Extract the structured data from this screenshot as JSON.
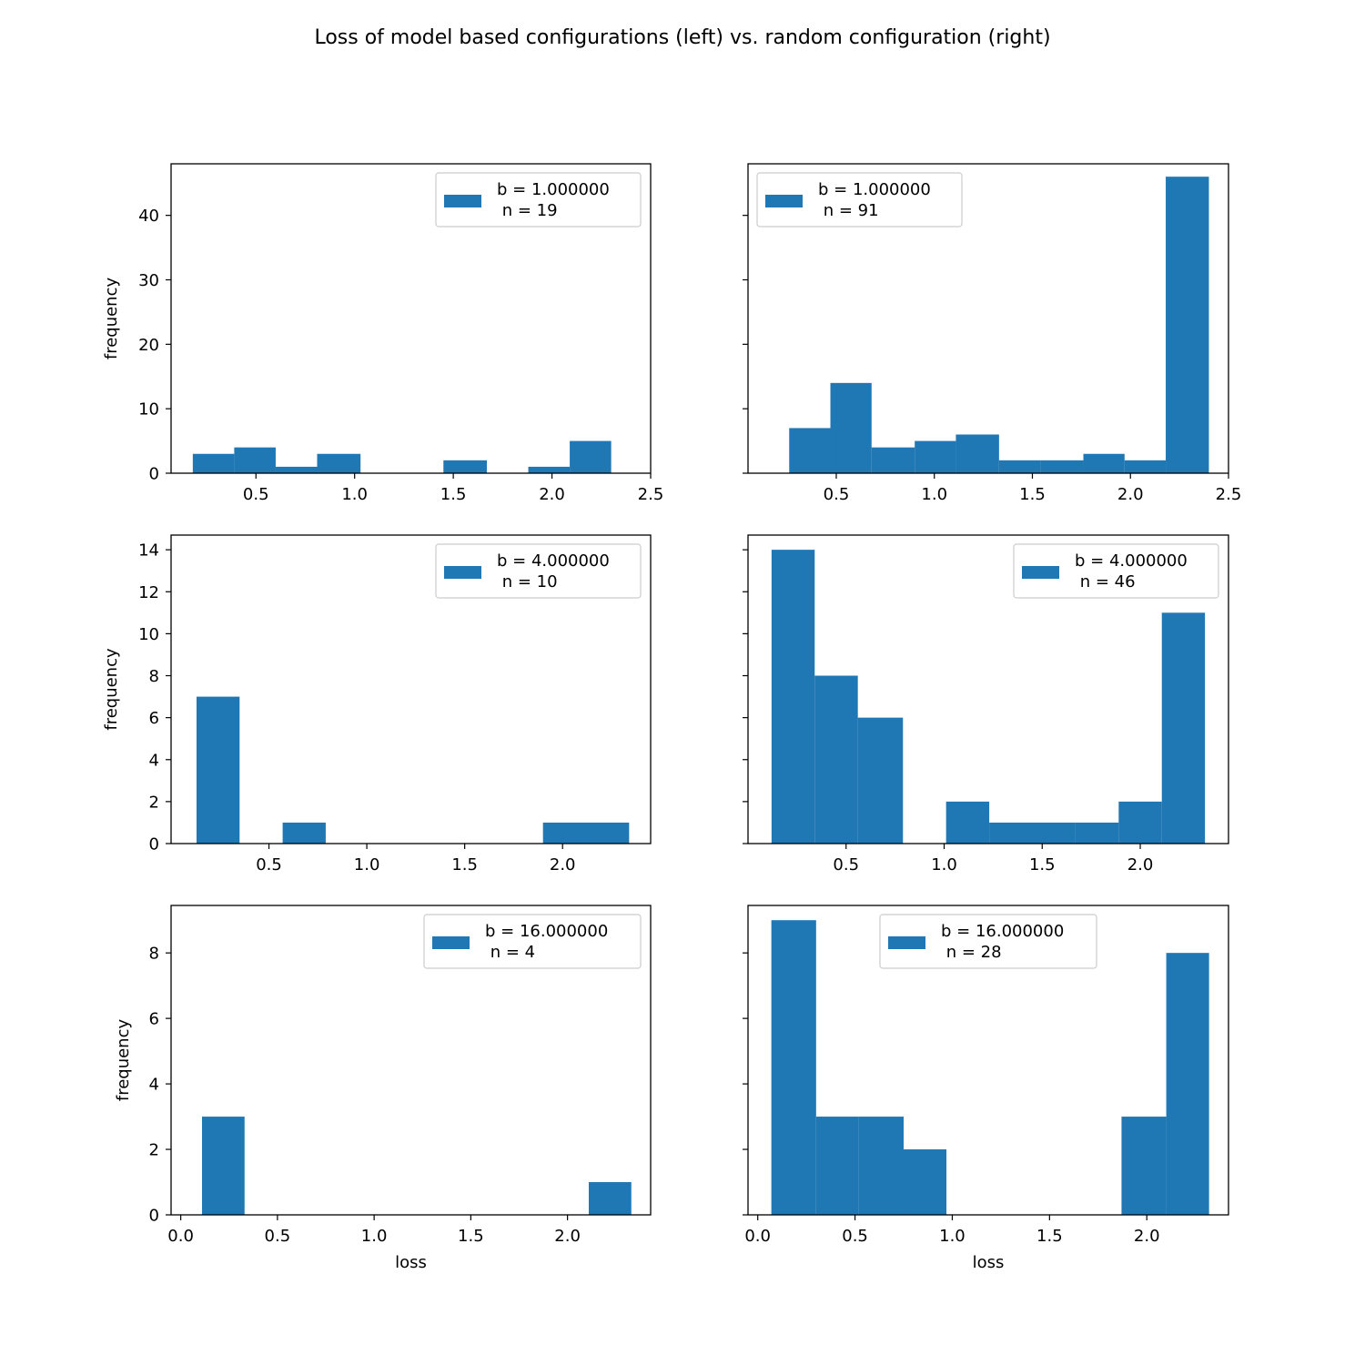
{
  "figure": {
    "title": "Loss of model based configurations (left) vs. random configuration (right)",
    "bar_color": "#1f77b4"
  },
  "chart_data": [
    {
      "type": "bar",
      "panel": "top-left",
      "xlim": [
        0.07,
        2.5
      ],
      "ylim": [
        0,
        48
      ],
      "xticks": [
        0.5,
        1.0,
        1.5,
        2.0,
        2.5
      ],
      "xticklabels": [
        "0.5",
        "1.0",
        "1.5",
        "2.0",
        "2.5"
      ],
      "yticks": [
        0,
        10,
        20,
        30,
        40
      ],
      "yticklabels": [
        "0",
        "10",
        "20",
        "30",
        "40"
      ],
      "show_yticklabels": true,
      "xlabel": "",
      "ylabel": "frequency",
      "legend": {
        "line1": "b = 1.000000",
        "line2": " n = 19",
        "placement": "upper right"
      },
      "bins": [
        {
          "x0": 0.18,
          "x1": 0.39,
          "count": 3
        },
        {
          "x0": 0.39,
          "x1": 0.6,
          "count": 4
        },
        {
          "x0": 0.6,
          "x1": 0.81,
          "count": 1
        },
        {
          "x0": 0.81,
          "x1": 1.03,
          "count": 3
        },
        {
          "x0": 1.03,
          "x1": 1.24,
          "count": 0
        },
        {
          "x0": 1.24,
          "x1": 1.45,
          "count": 0
        },
        {
          "x0": 1.45,
          "x1": 1.67,
          "count": 2
        },
        {
          "x0": 1.67,
          "x1": 1.88,
          "count": 0
        },
        {
          "x0": 1.88,
          "x1": 2.09,
          "count": 1
        },
        {
          "x0": 2.09,
          "x1": 2.3,
          "count": 5
        }
      ]
    },
    {
      "type": "bar",
      "panel": "top-right",
      "xlim": [
        0.05,
        2.5
      ],
      "ylim": [
        0,
        48
      ],
      "xticks": [
        0.5,
        1.0,
        1.5,
        2.0,
        2.5
      ],
      "xticklabels": [
        "0.5",
        "1.0",
        "1.5",
        "2.0",
        "2.5"
      ],
      "yticks": [
        0,
        10,
        20,
        30,
        40
      ],
      "yticklabels": [
        "0",
        "10",
        "20",
        "30",
        "40"
      ],
      "show_yticklabels": false,
      "xlabel": "",
      "ylabel": "",
      "legend": {
        "line1": "b = 1.000000",
        "line2": " n = 91",
        "placement": "upper left"
      },
      "bins": [
        {
          "x0": 0.26,
          "x1": 0.47,
          "count": 7
        },
        {
          "x0": 0.47,
          "x1": 0.68,
          "count": 14
        },
        {
          "x0": 0.68,
          "x1": 0.9,
          "count": 4
        },
        {
          "x0": 0.9,
          "x1": 1.11,
          "count": 5
        },
        {
          "x0": 1.11,
          "x1": 1.33,
          "count": 6
        },
        {
          "x0": 1.33,
          "x1": 1.54,
          "count": 2
        },
        {
          "x0": 1.54,
          "x1": 1.76,
          "count": 2
        },
        {
          "x0": 1.76,
          "x1": 1.97,
          "count": 3
        },
        {
          "x0": 1.97,
          "x1": 2.18,
          "count": 2
        },
        {
          "x0": 2.18,
          "x1": 2.4,
          "count": 46
        }
      ]
    },
    {
      "type": "bar",
      "panel": "middle-left",
      "xlim": [
        0.0,
        2.45
      ],
      "ylim": [
        0,
        14.7
      ],
      "xticks": [
        0.5,
        1.0,
        1.5,
        2.0
      ],
      "xticklabels": [
        "0.5",
        "1.0",
        "1.5",
        "2.0"
      ],
      "yticks": [
        0,
        2,
        4,
        6,
        8,
        10,
        12,
        14
      ],
      "yticklabels": [
        "0",
        "2",
        "4",
        "6",
        "8",
        "10",
        "12",
        "14"
      ],
      "show_yticklabels": true,
      "xlabel": "",
      "ylabel": "frequency",
      "legend": {
        "line1": "b = 4.000000",
        "line2": " n = 10",
        "placement": "upper right"
      },
      "bins": [
        {
          "x0": 0.13,
          "x1": 0.35,
          "count": 7
        },
        {
          "x0": 0.35,
          "x1": 0.57,
          "count": 0
        },
        {
          "x0": 0.57,
          "x1": 0.79,
          "count": 1
        },
        {
          "x0": 0.79,
          "x1": 1.01,
          "count": 0
        },
        {
          "x0": 1.01,
          "x1": 1.24,
          "count": 0
        },
        {
          "x0": 1.24,
          "x1": 1.46,
          "count": 0
        },
        {
          "x0": 1.46,
          "x1": 1.68,
          "count": 0
        },
        {
          "x0": 1.68,
          "x1": 1.9,
          "count": 0
        },
        {
          "x0": 1.9,
          "x1": 2.12,
          "count": 1
        },
        {
          "x0": 2.12,
          "x1": 2.34,
          "count": 1
        }
      ]
    },
    {
      "type": "bar",
      "panel": "middle-right",
      "xlim": [
        0.0,
        2.45
      ],
      "ylim": [
        0,
        14.7
      ],
      "xticks": [
        0.5,
        1.0,
        1.5,
        2.0
      ],
      "xticklabels": [
        "0.5",
        "1.0",
        "1.5",
        "2.0"
      ],
      "yticks": [
        0,
        2,
        4,
        6,
        8,
        10,
        12,
        14
      ],
      "yticklabels": [
        "0",
        "2",
        "4",
        "6",
        "8",
        "10",
        "12",
        "14"
      ],
      "show_yticklabels": false,
      "xlabel": "",
      "ylabel": "",
      "legend": {
        "line1": "b = 4.000000",
        "line2": " n = 46",
        "placement": "upper right"
      },
      "bins": [
        {
          "x0": 0.12,
          "x1": 0.34,
          "count": 14
        },
        {
          "x0": 0.34,
          "x1": 0.56,
          "count": 8
        },
        {
          "x0": 0.56,
          "x1": 0.79,
          "count": 6
        },
        {
          "x0": 0.79,
          "x1": 1.01,
          "count": 0
        },
        {
          "x0": 1.01,
          "x1": 1.23,
          "count": 2
        },
        {
          "x0": 1.23,
          "x1": 1.45,
          "count": 1
        },
        {
          "x0": 1.45,
          "x1": 1.67,
          "count": 1
        },
        {
          "x0": 1.67,
          "x1": 1.89,
          "count": 1
        },
        {
          "x0": 1.89,
          "x1": 2.11,
          "count": 2
        },
        {
          "x0": 2.11,
          "x1": 2.33,
          "count": 11
        }
      ]
    },
    {
      "type": "bar",
      "panel": "bottom-left",
      "xlim": [
        -0.05,
        2.43
      ],
      "ylim": [
        0,
        9.45
      ],
      "xticks": [
        0.0,
        0.5,
        1.0,
        1.5,
        2.0
      ],
      "xticklabels": [
        "0.0",
        "0.5",
        "1.0",
        "1.5",
        "2.0"
      ],
      "yticks": [
        0,
        2,
        4,
        6,
        8
      ],
      "yticklabels": [
        "0",
        "2",
        "4",
        "6",
        "8"
      ],
      "show_yticklabels": true,
      "xlabel": "loss",
      "ylabel": "frequency",
      "legend": {
        "line1": "b = 16.000000",
        "line2": " n = 4",
        "placement": "upper right"
      },
      "bins": [
        {
          "x0": 0.11,
          "x1": 0.33,
          "count": 3
        },
        {
          "x0": 0.33,
          "x1": 0.56,
          "count": 0
        },
        {
          "x0": 0.56,
          "x1": 0.78,
          "count": 0
        },
        {
          "x0": 0.78,
          "x1": 1.0,
          "count": 0
        },
        {
          "x0": 1.0,
          "x1": 1.22,
          "count": 0
        },
        {
          "x0": 1.22,
          "x1": 1.44,
          "count": 0
        },
        {
          "x0": 1.44,
          "x1": 1.67,
          "count": 0
        },
        {
          "x0": 1.67,
          "x1": 1.89,
          "count": 0
        },
        {
          "x0": 1.89,
          "x1": 2.11,
          "count": 0
        },
        {
          "x0": 2.11,
          "x1": 2.33,
          "count": 1
        }
      ]
    },
    {
      "type": "bar",
      "panel": "bottom-right",
      "xlim": [
        -0.05,
        2.42
      ],
      "ylim": [
        0,
        9.45
      ],
      "xticks": [
        0.0,
        0.5,
        1.0,
        1.5,
        2.0
      ],
      "xticklabels": [
        "0.0",
        "0.5",
        "1.0",
        "1.5",
        "2.0"
      ],
      "yticks": [
        0,
        2,
        4,
        6,
        8
      ],
      "yticklabels": [
        "0",
        "2",
        "4",
        "6",
        "8"
      ],
      "show_yticklabels": false,
      "xlabel": "loss",
      "ylabel": "",
      "legend": {
        "line1": "b = 16.000000",
        "line2": " n = 28",
        "placement": "upper center"
      },
      "bins": [
        {
          "x0": 0.07,
          "x1": 0.3,
          "count": 9
        },
        {
          "x0": 0.3,
          "x1": 0.52,
          "count": 3
        },
        {
          "x0": 0.52,
          "x1": 0.75,
          "count": 3
        },
        {
          "x0": 0.75,
          "x1": 0.97,
          "count": 2
        },
        {
          "x0": 0.97,
          "x1": 1.2,
          "count": 0
        },
        {
          "x0": 1.2,
          "x1": 1.42,
          "count": 0
        },
        {
          "x0": 1.42,
          "x1": 1.65,
          "count": 0
        },
        {
          "x0": 1.65,
          "x1": 1.87,
          "count": 0
        },
        {
          "x0": 1.87,
          "x1": 2.1,
          "count": 3
        },
        {
          "x0": 2.1,
          "x1": 2.32,
          "count": 8
        }
      ]
    }
  ]
}
